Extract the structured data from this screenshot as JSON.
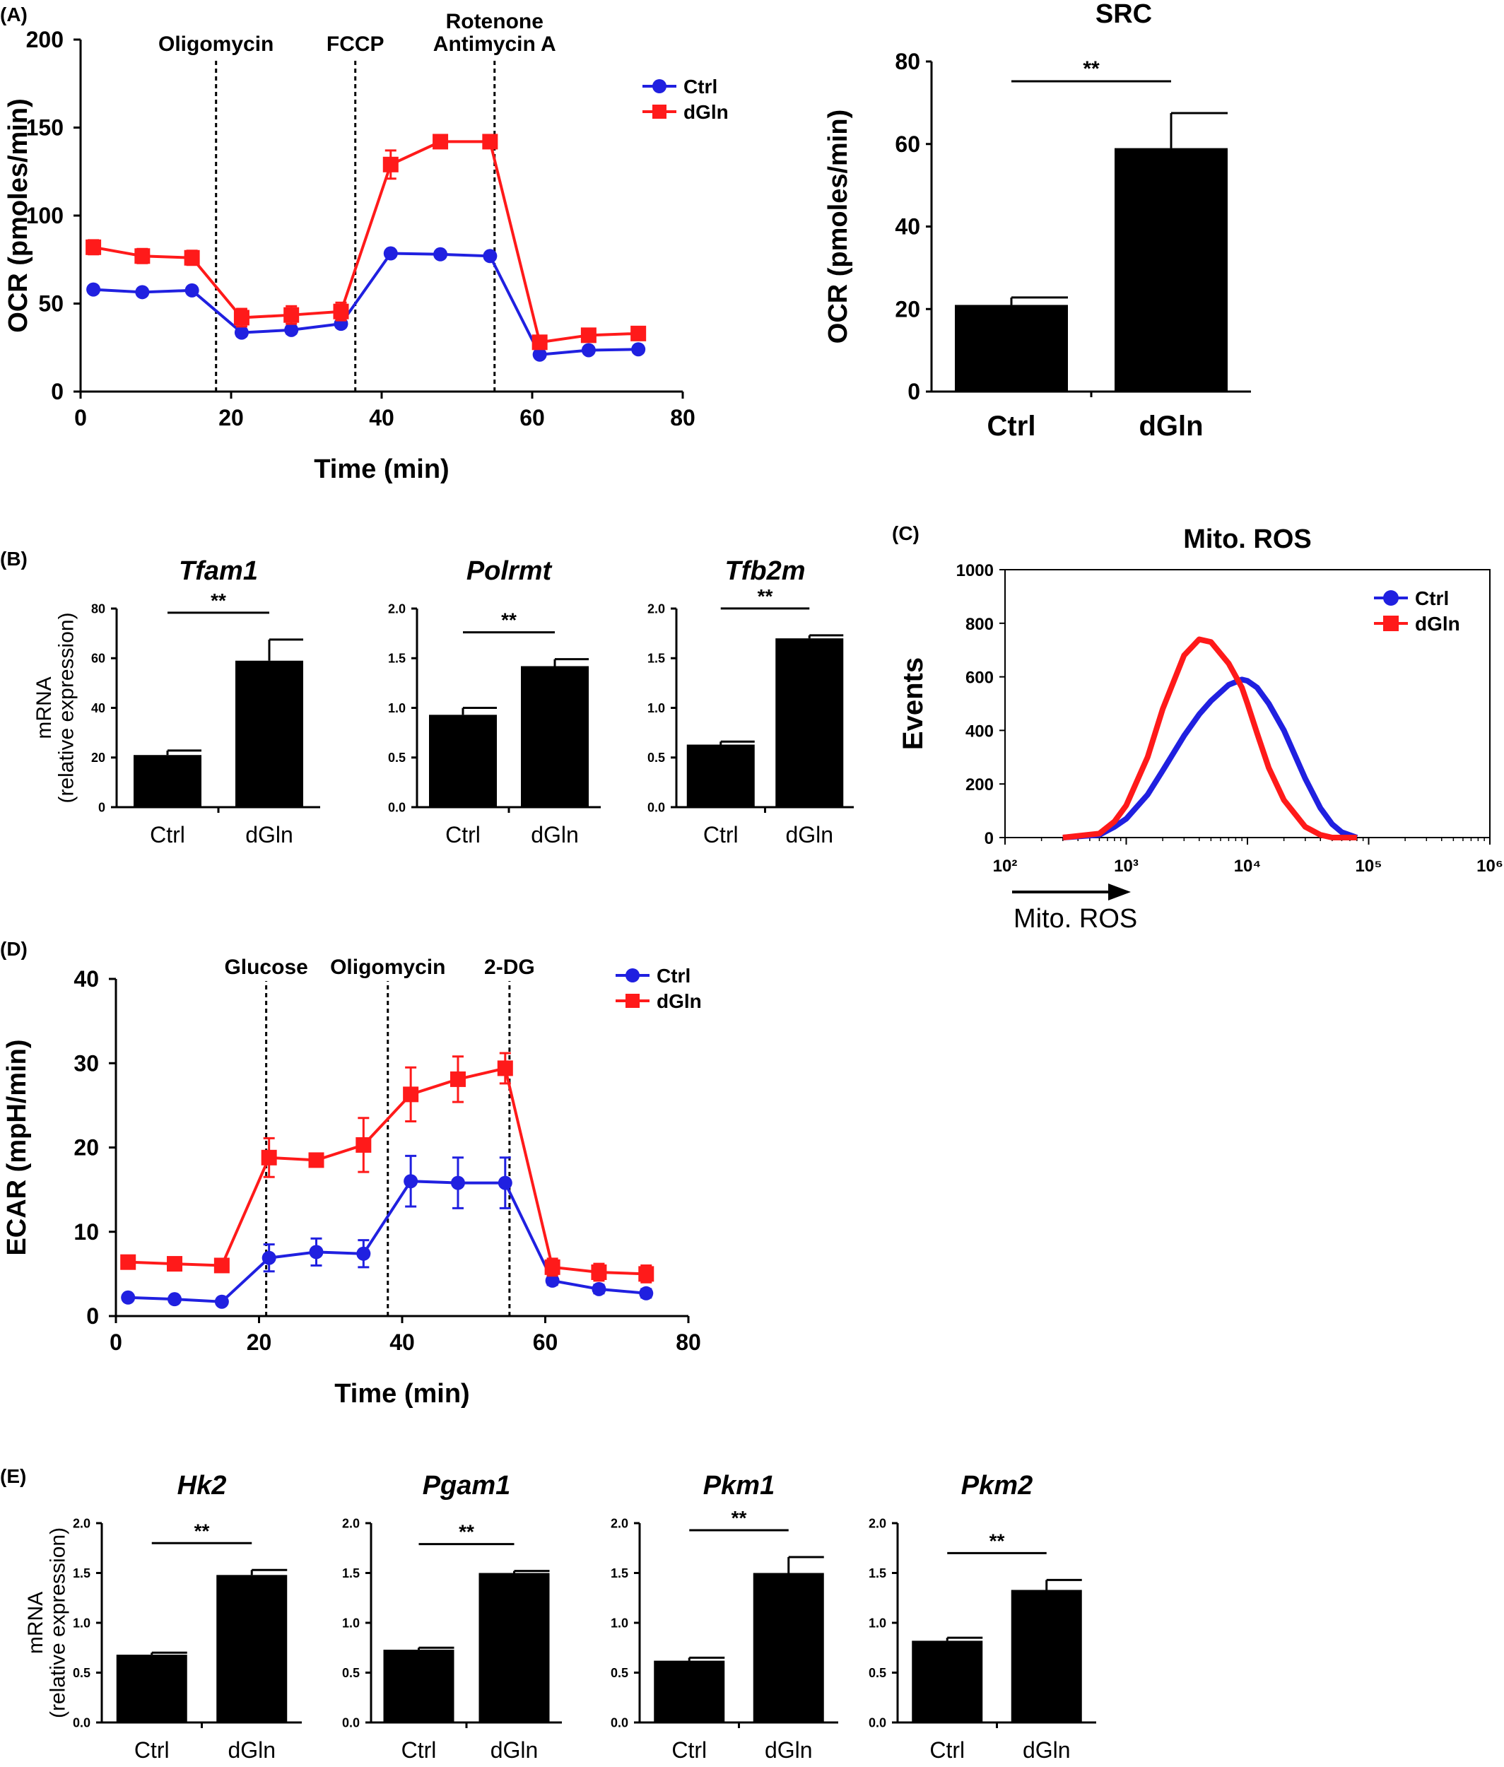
{
  "chart_data": [
    {
      "id": "A_ocr",
      "panel_label": "(A)",
      "type": "line",
      "title": "",
      "xlabel": "Time (min)",
      "ylabel": "OCR (pmoles/min)",
      "xlim": [
        0,
        80
      ],
      "ylim": [
        0,
        200
      ],
      "xticks": [
        0,
        20,
        40,
        60,
        80
      ],
      "yticks": [
        0,
        50,
        100,
        150,
        200
      ],
      "grid": false,
      "legend": "top-right",
      "injections": [
        {
          "label": "Oligomycin",
          "x": 18
        },
        {
          "label": "FCCP",
          "x": 36.5
        },
        {
          "label": "Rotenone\nAntimycin A",
          "x": 55
        }
      ],
      "x": [
        1.7,
        8.2,
        14.8,
        21.4,
        28.0,
        34.6,
        41.2,
        47.8,
        54.4,
        61.0,
        67.5,
        74.1
      ],
      "series": [
        {
          "name": "Ctrl",
          "color": "#2020e0",
          "marker": "circle",
          "values": [
            58,
            56.5,
            57.5,
            33.5,
            35,
            38.5,
            78.5,
            78,
            77,
            21,
            23.5,
            24
          ],
          "errors": [
            1.5,
            1.5,
            1.5,
            2,
            2,
            2,
            1.5,
            1.5,
            1.5,
            1.5,
            1,
            1
          ]
        },
        {
          "name": "dGln",
          "color": "#ff1a1a",
          "marker": "square",
          "values": [
            82,
            77,
            76,
            42,
            43.5,
            45.5,
            129,
            142,
            142,
            28,
            32,
            33
          ],
          "errors": [
            4,
            4,
            4,
            5,
            5,
            5,
            8,
            2,
            2,
            3,
            2,
            2
          ]
        }
      ]
    },
    {
      "id": "A_src",
      "type": "bar",
      "title": "SRC",
      "xlabel": "",
      "ylabel": "OCR (pmoles/min)",
      "categories": [
        "Ctrl",
        "dGln"
      ],
      "values": [
        21,
        59
      ],
      "errors": [
        1.8,
        8.5
      ],
      "ylim": [
        0,
        80
      ],
      "yticks": [
        0,
        20,
        40,
        60,
        80
      ],
      "significance": "**"
    },
    {
      "id": "B_tfam1",
      "panel_label": "(B)",
      "type": "bar",
      "title": "Tfam1",
      "ylabel": "mRNA\n(relative expression)",
      "categories": [
        "Ctrl",
        "dGln"
      ],
      "values": [
        21,
        59
      ],
      "errors": [
        1.8,
        8.5
      ],
      "ylim": [
        0,
        80
      ],
      "yticks": [
        "0",
        "20",
        "40",
        "60",
        "80"
      ],
      "significance": "**"
    },
    {
      "id": "B_polrmt",
      "type": "bar",
      "title": "Polrmt",
      "ylabel": "",
      "categories": [
        "Ctrl",
        "dGln"
      ],
      "values": [
        0.93,
        1.42
      ],
      "errors": [
        0.07,
        0.07
      ],
      "ylim": [
        0,
        2
      ],
      "yticks": [
        "0.0",
        "0.5",
        "1.0",
        "1.5",
        "2.0"
      ],
      "significance": "**"
    },
    {
      "id": "B_tfb2m",
      "type": "bar",
      "title": "Tfb2m",
      "ylabel": "",
      "categories": [
        "Ctrl",
        "dGln"
      ],
      "values": [
        0.63,
        1.7
      ],
      "errors": [
        0.03,
        0.03
      ],
      "ylim": [
        0,
        2
      ],
      "yticks": [
        "0.0",
        "0.5",
        "1.0",
        "1.5",
        "2.0"
      ],
      "significance": "**"
    },
    {
      "id": "C_ros",
      "panel_label": "(C)",
      "type": "line",
      "title": "Mito. ROS",
      "xlabel": "Mito. ROS",
      "ylabel": "Events",
      "x_scale": "log",
      "xlim": [
        100,
        1000000
      ],
      "ylim": [
        0,
        1000
      ],
      "xticks": [
        "10²",
        "10³",
        "10⁴",
        "10⁵",
        "10⁶"
      ],
      "yticks": [
        0,
        200,
        400,
        600,
        800,
        1000
      ],
      "legend": "top-right",
      "x": [
        300,
        600,
        800,
        1000,
        1500,
        2000,
        3000,
        4000,
        5000,
        7000,
        9000,
        10000,
        12000,
        15000,
        20000,
        30000,
        40000,
        50000,
        60000,
        80000
      ],
      "series": [
        {
          "name": "Ctrl",
          "color": "#2020e0",
          "marker": "circle",
          "values": [
            0,
            10,
            40,
            70,
            160,
            250,
            380,
            460,
            510,
            570,
            590,
            585,
            560,
            500,
            400,
            220,
            110,
            50,
            20,
            0
          ]
        },
        {
          "name": "dGln",
          "color": "#ff1a1a",
          "marker": "square",
          "values": [
            0,
            15,
            60,
            120,
            300,
            480,
            680,
            740,
            730,
            650,
            560,
            500,
            390,
            260,
            140,
            40,
            10,
            0,
            0,
            0
          ]
        }
      ]
    },
    {
      "id": "D_ecar",
      "panel_label": "(D)",
      "type": "line",
      "title": "",
      "xlabel": "Time (min)",
      "ylabel": "ECAR (mpH/min)",
      "xlim": [
        0,
        80
      ],
      "ylim": [
        0,
        40
      ],
      "xticks": [
        0,
        20,
        40,
        60,
        80
      ],
      "yticks": [
        0,
        10,
        20,
        30,
        40
      ],
      "grid": false,
      "legend": "top-right",
      "injections": [
        {
          "label": "Glucose",
          "x": 21
        },
        {
          "label": "Oligomycin",
          "x": 38
        },
        {
          "label": "2-DG",
          "x": 55
        }
      ],
      "x": [
        1.7,
        8.2,
        14.8,
        21.4,
        28.0,
        34.6,
        41.2,
        47.8,
        54.4,
        61.0,
        67.5,
        74.1
      ],
      "series": [
        {
          "name": "Ctrl",
          "color": "#2020e0",
          "marker": "circle",
          "values": [
            2.2,
            2.0,
            1.7,
            6.9,
            7.6,
            7.4,
            16.0,
            15.8,
            15.8,
            4.2,
            3.2,
            2.7
          ],
          "errors": [
            0.2,
            0.2,
            0.2,
            1.6,
            1.6,
            1.6,
            3.0,
            3.0,
            3.0,
            0.5,
            0.5,
            0.5
          ]
        },
        {
          "name": "dGln",
          "color": "#ff1a1a",
          "marker": "square",
          "values": [
            6.4,
            6.2,
            6.0,
            18.8,
            18.5,
            20.3,
            26.3,
            28.1,
            29.4,
            5.8,
            5.2,
            5.0
          ],
          "errors": [
            0.3,
            0.3,
            0.3,
            2.3,
            0.5,
            3.2,
            3.2,
            2.7,
            1.8,
            1.0,
            1.0,
            1.0
          ]
        }
      ]
    },
    {
      "id": "E_hk2",
      "panel_label": "(E)",
      "type": "bar",
      "title": "Hk2",
      "ylabel": "mRNA\n(relative expression)",
      "categories": [
        "Ctrl",
        "dGln"
      ],
      "values": [
        0.68,
        1.48
      ],
      "errors": [
        0.02,
        0.05
      ],
      "ylim": [
        0,
        2
      ],
      "yticks": [
        "0.0",
        "0.5",
        "1.0",
        "1.5",
        "2.0"
      ],
      "significance": "**"
    },
    {
      "id": "E_pgam1",
      "type": "bar",
      "title": "Pgam1",
      "ylabel": "",
      "categories": [
        "Ctrl",
        "dGln"
      ],
      "values": [
        0.73,
        1.5
      ],
      "errors": [
        0.02,
        0.02
      ],
      "ylim": [
        0,
        2
      ],
      "yticks": [
        "0.0",
        "0.5",
        "1.0",
        "1.5",
        "2.0"
      ],
      "significance": "**"
    },
    {
      "id": "E_pkm1",
      "type": "bar",
      "title": "Pkm1",
      "ylabel": "",
      "categories": [
        "Ctrl",
        "dGln"
      ],
      "values": [
        0.62,
        1.5
      ],
      "errors": [
        0.03,
        0.16
      ],
      "ylim": [
        0,
        2
      ],
      "yticks": [
        "0.0",
        "0.5",
        "1.0",
        "1.5",
        "2.0"
      ],
      "significance": "**"
    },
    {
      "id": "E_pkm2",
      "type": "bar",
      "title": "Pkm2",
      "ylabel": "",
      "categories": [
        "Ctrl",
        "dGln"
      ],
      "values": [
        0.82,
        1.33
      ],
      "errors": [
        0.03,
        0.1
      ],
      "ylim": [
        0,
        2
      ],
      "yticks": [
        "0.0",
        "0.5",
        "1.0",
        "1.5",
        "2.0"
      ],
      "significance": "**"
    }
  ]
}
